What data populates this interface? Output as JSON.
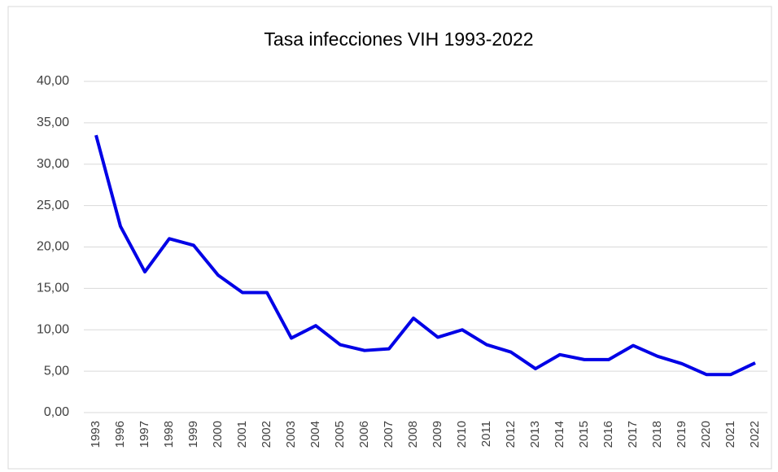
{
  "chart_data": {
    "type": "line",
    "title": "Tasa infecciones VIH 1993-2022",
    "categories": [
      "1993",
      "1996",
      "1997",
      "1998",
      "1999",
      "2000",
      "2001",
      "2002",
      "2003",
      "2004",
      "2005",
      "2006",
      "2007",
      "2008",
      "2009",
      "2010",
      "2011",
      "2012",
      "2013",
      "2014",
      "2015",
      "2016",
      "2017",
      "2018",
      "2019",
      "2020",
      "2021",
      "2022"
    ],
    "series": [
      {
        "name": "Tasa",
        "color": "#0000e6",
        "values": [
          33.5,
          22.5,
          17.0,
          21.0,
          20.2,
          16.6,
          14.5,
          14.5,
          9.0,
          10.5,
          8.2,
          7.5,
          7.7,
          11.4,
          9.1,
          10.0,
          8.2,
          7.3,
          5.3,
          7.0,
          6.4,
          6.4,
          8.1,
          6.8,
          5.9,
          4.6,
          4.6,
          6.0
        ]
      }
    ],
    "ylim": [
      0,
      40
    ],
    "yticks": [
      {
        "value": 0,
        "label": "0,00"
      },
      {
        "value": 5,
        "label": "5,00"
      },
      {
        "value": 10,
        "label": "10,00"
      },
      {
        "value": 15,
        "label": "15,00"
      },
      {
        "value": 20,
        "label": "20,00"
      },
      {
        "value": 25,
        "label": "25,00"
      },
      {
        "value": 30,
        "label": "30,00"
      },
      {
        "value": 35,
        "label": "35,00"
      },
      {
        "value": 40,
        "label": "40,00"
      }
    ],
    "grid": true
  }
}
